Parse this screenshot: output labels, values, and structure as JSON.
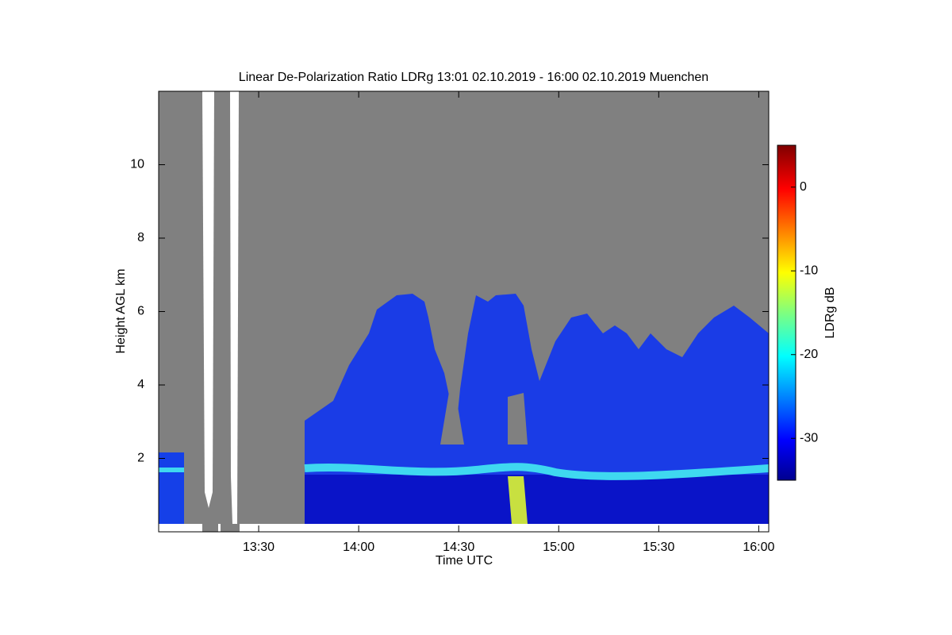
{
  "chart_data": {
    "type": "heatmap",
    "title": "Linear De-Polarization Ratio LDRg   13:01 02.10.2019 - 16:00 02.10.2019 Muenchen",
    "x_label": "Time UTC",
    "y_label": "Height AGL km",
    "colorbar_label": "LDRg dB",
    "xlim": [
      13.0,
      16.05
    ],
    "xticks": [
      {
        "value": 13.5,
        "label": "13:30"
      },
      {
        "value": 14.0,
        "label": "14:00"
      },
      {
        "value": 14.5,
        "label": "14:30"
      },
      {
        "value": 15.0,
        "label": "15:00"
      },
      {
        "value": 15.5,
        "label": "15:30"
      },
      {
        "value": 16.0,
        "label": "16:00"
      }
    ],
    "ylim": [
      0,
      12
    ],
    "yticks": [
      2,
      4,
      6,
      8,
      10
    ],
    "clim": [
      -35,
      5
    ],
    "cticks": [
      -30,
      -20,
      -10,
      0
    ]
  }
}
